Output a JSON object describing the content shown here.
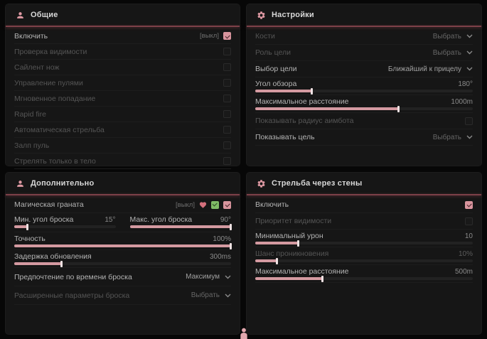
{
  "colors": {
    "accent_pink": "#d9989f",
    "header_line": "#7d4048",
    "badge_green": "#7fba66",
    "badge_heart": "#d4707c",
    "panel_bg": "#161616",
    "page_bg": "#070707"
  },
  "general": {
    "title": "Общие",
    "rows": {
      "enable": {
        "label": "Включить",
        "state": "[выкл]",
        "checked": true
      },
      "visibility_check": {
        "label": "Проверка видимости",
        "checked": false
      },
      "silent_knife": {
        "label": "Сайлент нож",
        "checked": false
      },
      "bullet_control": {
        "label": "Управление пулями",
        "checked": false
      },
      "instant_hit": {
        "label": "Мгновенное попадание",
        "checked": false
      },
      "rapid_fire": {
        "label": "Rapid fire",
        "checked": false
      },
      "auto_fire": {
        "label": "Автоматическая стрельба",
        "checked": false
      },
      "bullet_volley": {
        "label": "Залп пуль",
        "checked": false
      },
      "body_only": {
        "label": "Стрелять только в тело",
        "checked": false
      }
    }
  },
  "settings": {
    "title": "Настройки",
    "rows": {
      "bones": {
        "label": "Кости",
        "value": "Выбрать"
      },
      "target_role": {
        "label": "Роль цели",
        "value": "Выбрать"
      },
      "target_select": {
        "label": "Выбор цели",
        "value": "Ближайший к прицелу"
      },
      "fov": {
        "label": "Угол обзора",
        "value": "180°",
        "percent": 26
      },
      "max_distance": {
        "label": "Максимальное расстояние",
        "value": "1000m",
        "percent": 66
      },
      "show_radius": {
        "label": "Показывать радиус аимбота",
        "checked": false
      },
      "show_target": {
        "label": "Показывать цель",
        "value": "Выбрать"
      }
    }
  },
  "additional": {
    "title": "Дополнительно",
    "rows": {
      "magic_grenade": {
        "label": "Магическая граната",
        "state": "[выкл]",
        "checked": true
      },
      "min_throw_angle": {
        "label": "Мин. угол броска",
        "value": "15°",
        "percent": 13
      },
      "max_throw_angle": {
        "label": "Макс. угол броска",
        "value": "90°",
        "percent": 100
      },
      "accuracy": {
        "label": "Точность",
        "value": "100%",
        "percent": 100
      },
      "update_delay": {
        "label": "Задержка обновления",
        "value": "300ms",
        "percent": 22
      },
      "throw_time_pref": {
        "label": "Предпочтение по времени броска",
        "value": "Максимум"
      },
      "advanced_throw": {
        "label": "Расширенные параметры броска",
        "value": "Выбрать"
      }
    }
  },
  "wallbang": {
    "title": "Стрельба через стены",
    "rows": {
      "enable": {
        "label": "Включить",
        "checked": true
      },
      "visibility_priority": {
        "label": "Приоритет видимости",
        "checked": false
      },
      "min_damage": {
        "label": "Минимальный урон",
        "value": "10",
        "percent": 20
      },
      "penetration_chance": {
        "label": "Шанс проникновения",
        "value": "10%",
        "percent": 10
      },
      "max_distance": {
        "label": "Максимальное расстояние",
        "value": "500m",
        "percent": 31
      }
    }
  }
}
